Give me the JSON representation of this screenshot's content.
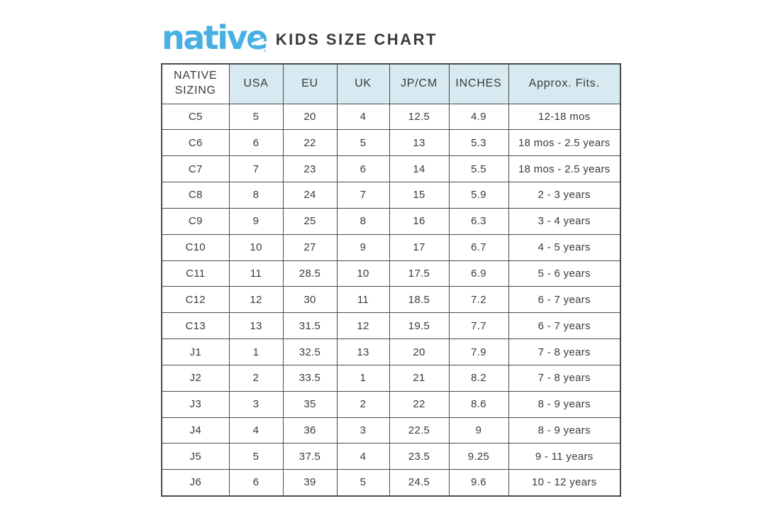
{
  "brand": {
    "logo_text": "native"
  },
  "header": {
    "title": "KIDS SIZE CHART"
  },
  "colors": {
    "logo_blue": "#47AFE4",
    "header_bg": "#D7E9F1",
    "border": "#4A4A4A",
    "text": "#3A3A3A"
  },
  "chart_data": {
    "type": "table",
    "title": "native KIDS SIZE CHART",
    "legend_position": "none",
    "columns": [
      "NATIVE SIZING",
      "USA",
      "EU",
      "UK",
      "JP/CM",
      "INCHES",
      "Approx. Fits."
    ],
    "rows": [
      [
        "C5",
        "5",
        "20",
        "4",
        "12.5",
        "4.9",
        "12-18 mos"
      ],
      [
        "C6",
        "6",
        "22",
        "5",
        "13",
        "5.3",
        "18 mos - 2.5 years"
      ],
      [
        "C7",
        "7",
        "23",
        "6",
        "14",
        "5.5",
        "18 mos - 2.5 years"
      ],
      [
        "C8",
        "8",
        "24",
        "7",
        "15",
        "5.9",
        "2 - 3 years"
      ],
      [
        "C9",
        "9",
        "25",
        "8",
        "16",
        "6.3",
        "3 - 4 years"
      ],
      [
        "C10",
        "10",
        "27",
        "9",
        "17",
        "6.7",
        "4 - 5 years"
      ],
      [
        "C11",
        "11",
        "28.5",
        "10",
        "17.5",
        "6.9",
        "5 - 6 years"
      ],
      [
        "C12",
        "12",
        "30",
        "11",
        "18.5",
        "7.2",
        "6 - 7 years"
      ],
      [
        "C13",
        "13",
        "31.5",
        "12",
        "19.5",
        "7.7",
        "6 - 7 years"
      ],
      [
        "J1",
        "1",
        "32.5",
        "13",
        "20",
        "7.9",
        "7 - 8 years"
      ],
      [
        "J2",
        "2",
        "33.5",
        "1",
        "21",
        "8.2",
        "7 - 8 years"
      ],
      [
        "J3",
        "3",
        "35",
        "2",
        "22",
        "8.6",
        "8 - 9 years"
      ],
      [
        "J4",
        "4",
        "36",
        "3",
        "22.5",
        "9",
        "8 - 9 years"
      ],
      [
        "J5",
        "5",
        "37.5",
        "4",
        "23.5",
        "9.25",
        "9 - 11 years"
      ],
      [
        "J6",
        "6",
        "39",
        "5",
        "24.5",
        "9.6",
        "10 - 12 years"
      ]
    ]
  }
}
